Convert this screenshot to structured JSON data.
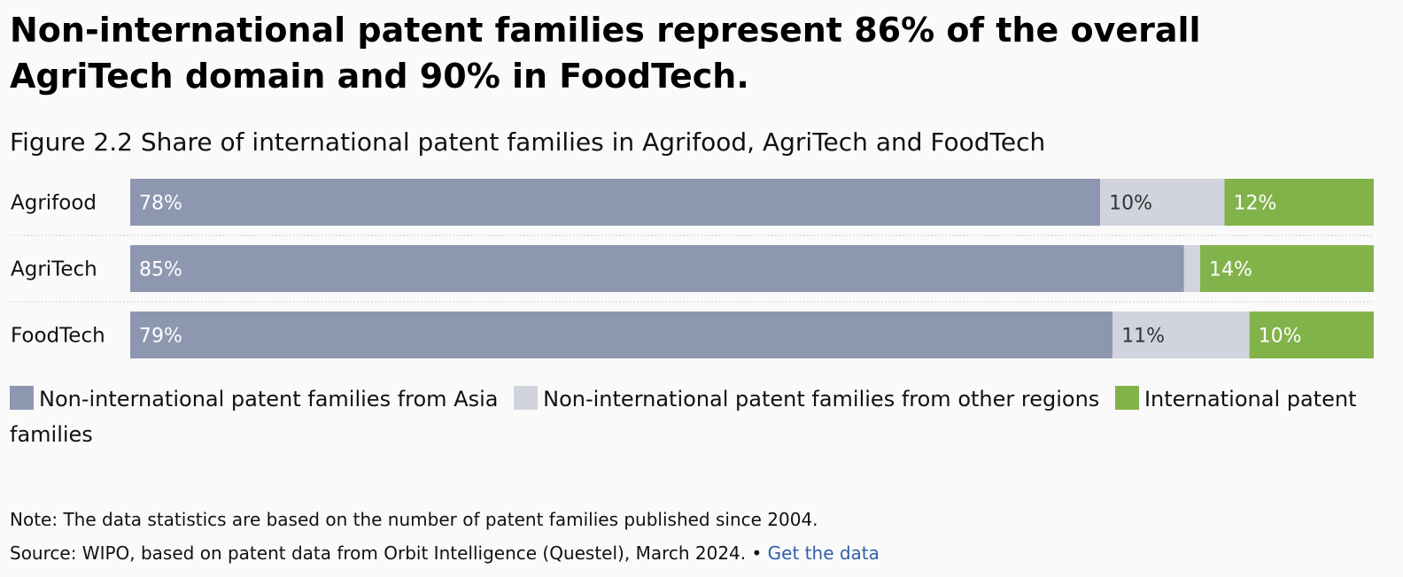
{
  "headline": "Non-international patent families represent 86% of the overall AgriTech domain and 90% in FoodTech.",
  "colors": {
    "asia": "#8e97b0",
    "other": "#d1d4de",
    "international": "#82b34a",
    "label_light": "#ffffff",
    "label_dark": "#333333",
    "link": "#2f5ea8"
  },
  "chart_data": {
    "type": "bar",
    "orientation": "horizontal",
    "stacked": true,
    "normalized": true,
    "title": "Figure 2.2 Share of international patent families in Agrifood, AgriTech and FoodTech",
    "categories": [
      "Agrifood",
      "AgriTech",
      "FoodTech"
    ],
    "series": [
      {
        "name": "Non-international patent families from Asia",
        "values": [
          78,
          85,
          79
        ],
        "labels": [
          "78%",
          "85%",
          "79%"
        ],
        "color": "#8e97b0"
      },
      {
        "name": "Non-international patent families from other regions",
        "values": [
          10,
          1.3,
          11
        ],
        "labels": [
          "10%",
          "",
          "11%"
        ],
        "color": "#d1d4de"
      },
      {
        "name": "International patent families",
        "values": [
          12,
          14,
          10
        ],
        "labels": [
          "12%",
          "14%",
          "10%"
        ],
        "color": "#82b34a"
      }
    ],
    "xlim": [
      0,
      100
    ],
    "unit": "%",
    "grid": false,
    "legend": "bottom"
  },
  "footer": {
    "note": "Note: The data statistics are based on the number of patent families published since 2004.",
    "source": "Source: WIPO, based on patent data from Orbit Intelligence (Questel), March 2024.",
    "separator": " • ",
    "link_label": "Get the data"
  }
}
